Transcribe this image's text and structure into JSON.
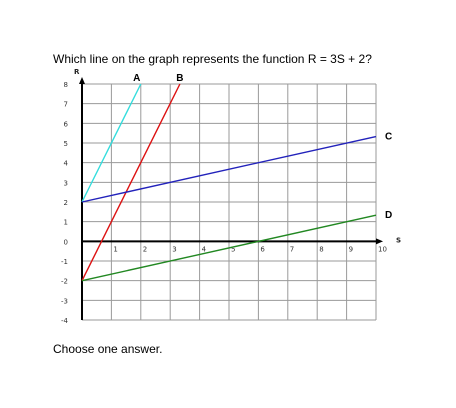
{
  "question": {
    "text": "Which line on the graph represents the function R = 3S + 2?"
  },
  "answer_prompt": "Choose one answer.",
  "chart_data": {
    "type": "line",
    "xlabel": "S",
    "ylabel": "R",
    "xlim": [
      0,
      10
    ],
    "ylim": [
      -4,
      8
    ],
    "x_ticks": [
      "",
      "1",
      "2",
      "3",
      "4",
      "5",
      "6",
      "7",
      "8",
      "9",
      "10"
    ],
    "y_ticks": [
      "-4",
      "-3",
      "-2",
      "-1",
      "0",
      "1",
      "2",
      "3",
      "4",
      "5",
      "6",
      "7",
      "8"
    ],
    "grid": true,
    "series": [
      {
        "name": "A",
        "color": "#33dddd",
        "x": [
          0,
          2
        ],
        "y": [
          2,
          8
        ]
      },
      {
        "name": "B",
        "color": "#dd1111",
        "x": [
          0,
          3.33
        ],
        "y": [
          -2,
          8
        ]
      },
      {
        "name": "C",
        "color": "#2222bb",
        "x": [
          0,
          10
        ],
        "y": [
          2,
          5.33
        ]
      },
      {
        "name": "D",
        "color": "#228822",
        "x": [
          0,
          10
        ],
        "y": [
          -2,
          1.33
        ]
      }
    ]
  }
}
